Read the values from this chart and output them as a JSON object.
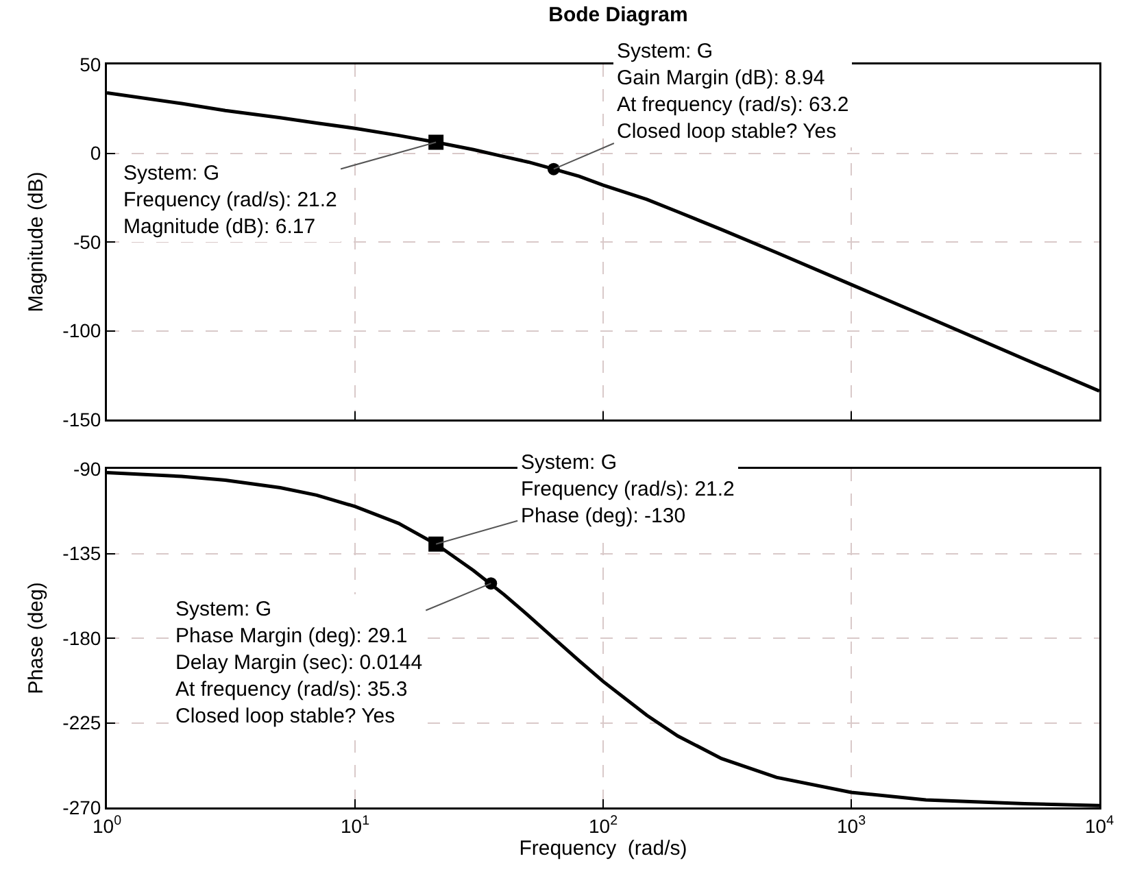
{
  "chart_data": [
    {
      "type": "line",
      "title": "Bode Diagram",
      "ylabel": "Magnitude (dB)",
      "log": "x",
      "grid": true,
      "tick_labels": "y",
      "xlim": [
        1,
        10000
      ],
      "xticks": [
        1,
        10,
        100,
        1000,
        10000
      ],
      "ylim": [
        -150,
        50
      ],
      "yticks": [
        -150,
        -100,
        -50,
        0,
        50
      ],
      "series": [
        {
          "type": "line",
          "color": "#000000",
          "x": [
            1,
            2,
            3,
            5,
            7,
            10,
            15,
            21.2,
            30,
            40,
            50,
            63.2,
            80,
            100,
            150,
            200,
            300,
            500,
            1000,
            2000,
            5000,
            10000
          ],
          "values": [
            34,
            28,
            24,
            20,
            17,
            14,
            10,
            6.17,
            2,
            -2,
            -5,
            -8.94,
            -13,
            -18,
            -26,
            -33,
            -43,
            -56,
            -74,
            -92,
            -116,
            -134
          ]
        },
        {
          "type": "scatter",
          "marker": "square",
          "color": "#000000",
          "x": [
            21.2
          ],
          "values": [
            6.17
          ]
        },
        {
          "type": "scatter",
          "marker": "circle",
          "color": "#000000",
          "x": [
            63.2
          ],
          "values": [
            -8.94
          ]
        }
      ],
      "annotations": [
        {
          "text": "System: G\nFrequency (rad/s): 21.2\nMagnitude (dB): 6.17",
          "x": 21.2,
          "y": 6.17
        },
        {
          "text": "System: G\nGain Margin (dB): 8.94\nAt frequency (rad/s): 63.2\nClosed loop stable? Yes",
          "x": 63.2,
          "y": -8.94
        }
      ]
    },
    {
      "type": "line",
      "ylabel": "Phase (deg)",
      "xlabel": "Frequency  (rad/s)",
      "log": "x",
      "grid": true,
      "xlim": [
        1,
        10000
      ],
      "xticks": [
        {
          "value": 1,
          "label": "10$^{0}$"
        },
        {
          "value": 10,
          "label": "10$^{1}$"
        },
        {
          "value": 100,
          "label": "10$^{2}$"
        },
        {
          "value": 1000,
          "label": "10$^{3}$"
        },
        {
          "value": 10000,
          "label": "10$^{4}$"
        }
      ],
      "ylim": [
        -270,
        -90
      ],
      "yticks": [
        -270,
        -225,
        -180,
        -135,
        -90
      ],
      "series": [
        {
          "type": "line",
          "color": "#000000",
          "x": [
            1,
            2,
            3,
            5,
            7,
            10,
            15,
            21.2,
            30,
            40,
            50,
            63.2,
            80,
            100,
            150,
            200,
            300,
            500,
            1000,
            2000,
            5000,
            10000
          ],
          "values": [
            -92,
            -94,
            -96,
            -100,
            -104,
            -110,
            -119,
            -130,
            -144,
            -157,
            -168,
            -180,
            -192,
            -203,
            -221,
            -232,
            -244,
            -254,
            -262,
            -266,
            -268,
            -269
          ]
        },
        {
          "type": "scatter",
          "marker": "square",
          "color": "#000000",
          "x": [
            21.2
          ],
          "values": [
            -130
          ]
        },
        {
          "type": "scatter",
          "marker": "circle",
          "color": "#000000",
          "x": [
            35.3
          ],
          "values": [
            -150.9
          ]
        }
      ],
      "annotations": [
        {
          "text": "System: G\nFrequency (rad/s): 21.2\nPhase (deg): -130",
          "x": 21.2,
          "y": -130
        },
        {
          "text": "System: G\nPhase Margin (deg): 29.1\nDelay Margin (sec): 0.0144\nAt frequency (rad/s): 35.3\nClosed loop stable? Yes",
          "x": 35.3,
          "y": -150.9
        }
      ]
    }
  ]
}
